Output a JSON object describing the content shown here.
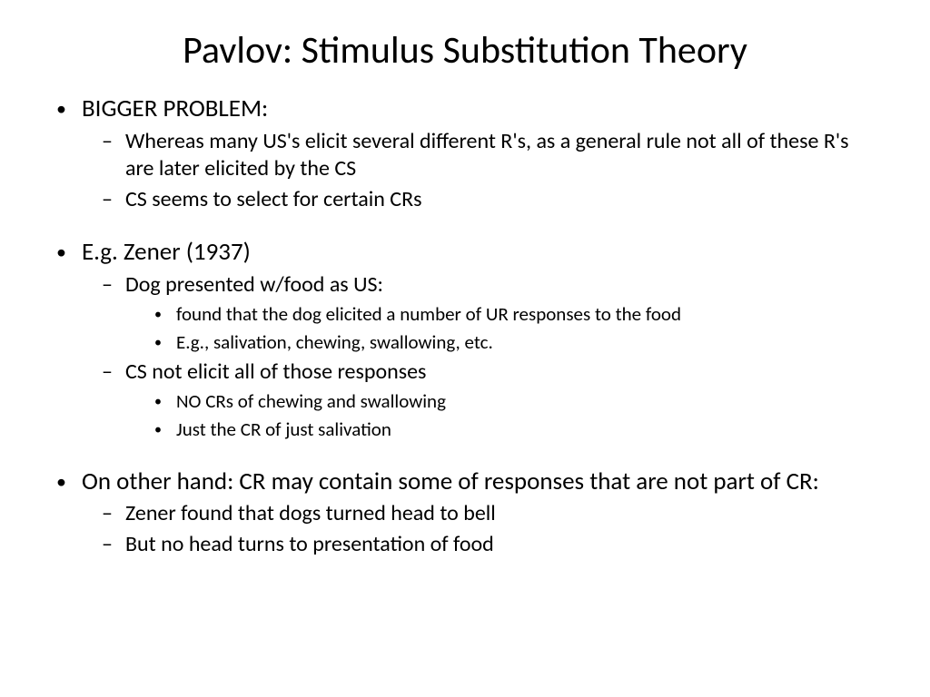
{
  "title": "Pavlov: Stimulus Substitution Theory",
  "b1": {
    "t": "BIGGER PROBLEM:"
  },
  "b1a": {
    "t": "Whereas many US's elicit several different R's, as a general rule not all of these R's are later elicited by the CS"
  },
  "b1b": {
    "t": "CS seems to select for certain CRs"
  },
  "b2": {
    "t": "E.g. Zener (1937)"
  },
  "b2a": {
    "t": "Dog presented w/food as US:"
  },
  "b2a1": {
    "t": "found that the dog elicited a number of UR responses to the food"
  },
  "b2a2": {
    "t": "E.g., salivation, chewing, swallowing, etc."
  },
  "b2b": {
    "t": "CS not elicit all of those responses"
  },
  "b2b1": {
    "t": "NO CRs of chewing and swallowing"
  },
  "b2b2": {
    "t": "Just the CR of just salivation"
  },
  "b3": {
    "t": "On other hand: CR may contain some of responses that are not part of CR:"
  },
  "b3a": {
    "t": "Zener found that dogs turned head to bell"
  },
  "b3b": {
    "t": "But no head turns to presentation of food"
  },
  "style": {
    "background_color": "#ffffff",
    "text_color": "#000000",
    "font_family": "Calibri",
    "title_fontsize": 42,
    "l1_fontsize": 27,
    "l2_fontsize": 24,
    "l3_fontsize": 21,
    "slide_width": 1024,
    "slide_height": 768
  }
}
